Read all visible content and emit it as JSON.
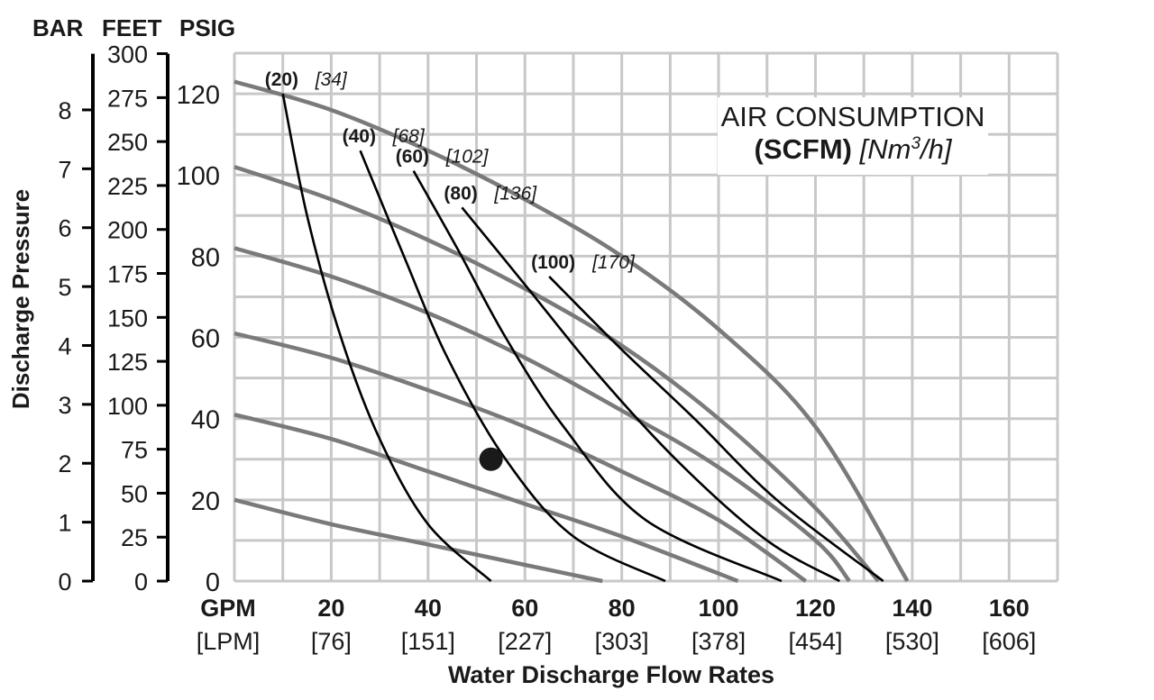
{
  "chart_data": {
    "type": "line",
    "title_line1": "AIR CONSUMPTION",
    "title_bold": "(SCFM)",
    "title_italic_prefix": "[Nm",
    "title_superscript": "3",
    "title_italic_suffix": "/h]",
    "xlabel": "Water Discharge Flow Rates",
    "ylabel": "Discharge Pressure",
    "x_unit_primary": "GPM",
    "x_unit_secondary": "[LPM]",
    "y_unit_bar": "BAR",
    "y_unit_feet": "FEET",
    "y_unit_psig": "PSIG",
    "xlim": [
      0,
      170
    ],
    "ylim": [
      0,
      130
    ],
    "grid": true,
    "x_ticks": [
      {
        "gpm": "20",
        "lpm": "[76]",
        "value": 20
      },
      {
        "gpm": "40",
        "lpm": "[151]",
        "value": 40
      },
      {
        "gpm": "60",
        "lpm": "[227]",
        "value": 60
      },
      {
        "gpm": "80",
        "lpm": "[303]",
        "value": 80
      },
      {
        "gpm": "100",
        "lpm": "[378]",
        "value": 100
      },
      {
        "gpm": "120",
        "lpm": "[454]",
        "value": 120
      },
      {
        "gpm": "140",
        "lpm": "[530]",
        "value": 140
      },
      {
        "gpm": "160",
        "lpm": "[606]",
        "value": 160
      }
    ],
    "psig_ticks": [
      "0",
      "20",
      "40",
      "60",
      "80",
      "100",
      "120"
    ],
    "feet_ticks": [
      "0",
      "25",
      "50",
      "75",
      "100",
      "125",
      "150",
      "175",
      "200",
      "225",
      "250",
      "275",
      "300"
    ],
    "bar_ticks": [
      "0",
      "1",
      "2",
      "3",
      "4",
      "5",
      "6",
      "7",
      "8"
    ],
    "air_consumption_curves": [
      {
        "scfm": "(20)",
        "nm3h": "[34]",
        "points": [
          [
            10,
            120
          ],
          [
            15,
            90
          ],
          [
            22,
            60
          ],
          [
            30,
            35
          ],
          [
            40,
            14
          ],
          [
            53,
            0
          ]
        ]
      },
      {
        "scfm": "(40)",
        "nm3h": "[68]",
        "points": [
          [
            26,
            106
          ],
          [
            35,
            80
          ],
          [
            44,
            55
          ],
          [
            56,
            30
          ],
          [
            70,
            11
          ],
          [
            89,
            0
          ]
        ]
      },
      {
        "scfm": "(60)",
        "nm3h": "[102]",
        "points": [
          [
            37,
            101
          ],
          [
            46,
            82
          ],
          [
            56,
            60
          ],
          [
            68,
            38
          ],
          [
            85,
            15
          ],
          [
            113,
            0
          ]
        ]
      },
      {
        "scfm": "(80)",
        "nm3h": "[136]",
        "points": [
          [
            47,
            92
          ],
          [
            60,
            73
          ],
          [
            75,
            51
          ],
          [
            92,
            29
          ],
          [
            110,
            10
          ],
          [
            125,
            0
          ]
        ]
      },
      {
        "scfm": "(100)",
        "nm3h": "[170]",
        "points": [
          [
            65,
            75
          ],
          [
            80,
            57
          ],
          [
            95,
            40
          ],
          [
            112,
            20
          ],
          [
            134,
            0
          ]
        ]
      }
    ],
    "air_inlet_pressure_curves": [
      {
        "points": [
          [
            0,
            123
          ],
          [
            20,
            116
          ],
          [
            40,
            106
          ],
          [
            60,
            94
          ],
          [
            80,
            80
          ],
          [
            100,
            62
          ],
          [
            120,
            38
          ],
          [
            139,
            0
          ]
        ]
      },
      {
        "points": [
          [
            0,
            102
          ],
          [
            20,
            94
          ],
          [
            40,
            84
          ],
          [
            60,
            72
          ],
          [
            80,
            58
          ],
          [
            100,
            40
          ],
          [
            120,
            18
          ],
          [
            133,
            0
          ]
        ]
      },
      {
        "points": [
          [
            0,
            82
          ],
          [
            20,
            75
          ],
          [
            40,
            66
          ],
          [
            60,
            55
          ],
          [
            80,
            42
          ],
          [
            100,
            28
          ],
          [
            120,
            10
          ],
          [
            127,
            0
          ]
        ]
      },
      {
        "points": [
          [
            0,
            61
          ],
          [
            20,
            55
          ],
          [
            40,
            47
          ],
          [
            60,
            38
          ],
          [
            80,
            27
          ],
          [
            100,
            15
          ],
          [
            118,
            0
          ]
        ]
      },
      {
        "points": [
          [
            0,
            41
          ],
          [
            20,
            35
          ],
          [
            40,
            27
          ],
          [
            60,
            19
          ],
          [
            80,
            11
          ],
          [
            104,
            0
          ]
        ]
      },
      {
        "points": [
          [
            0,
            20
          ],
          [
            20,
            14
          ],
          [
            40,
            9
          ],
          [
            60,
            4
          ],
          [
            76,
            0
          ]
        ]
      }
    ],
    "marker_point": {
      "x": 53,
      "y": 30
    }
  }
}
